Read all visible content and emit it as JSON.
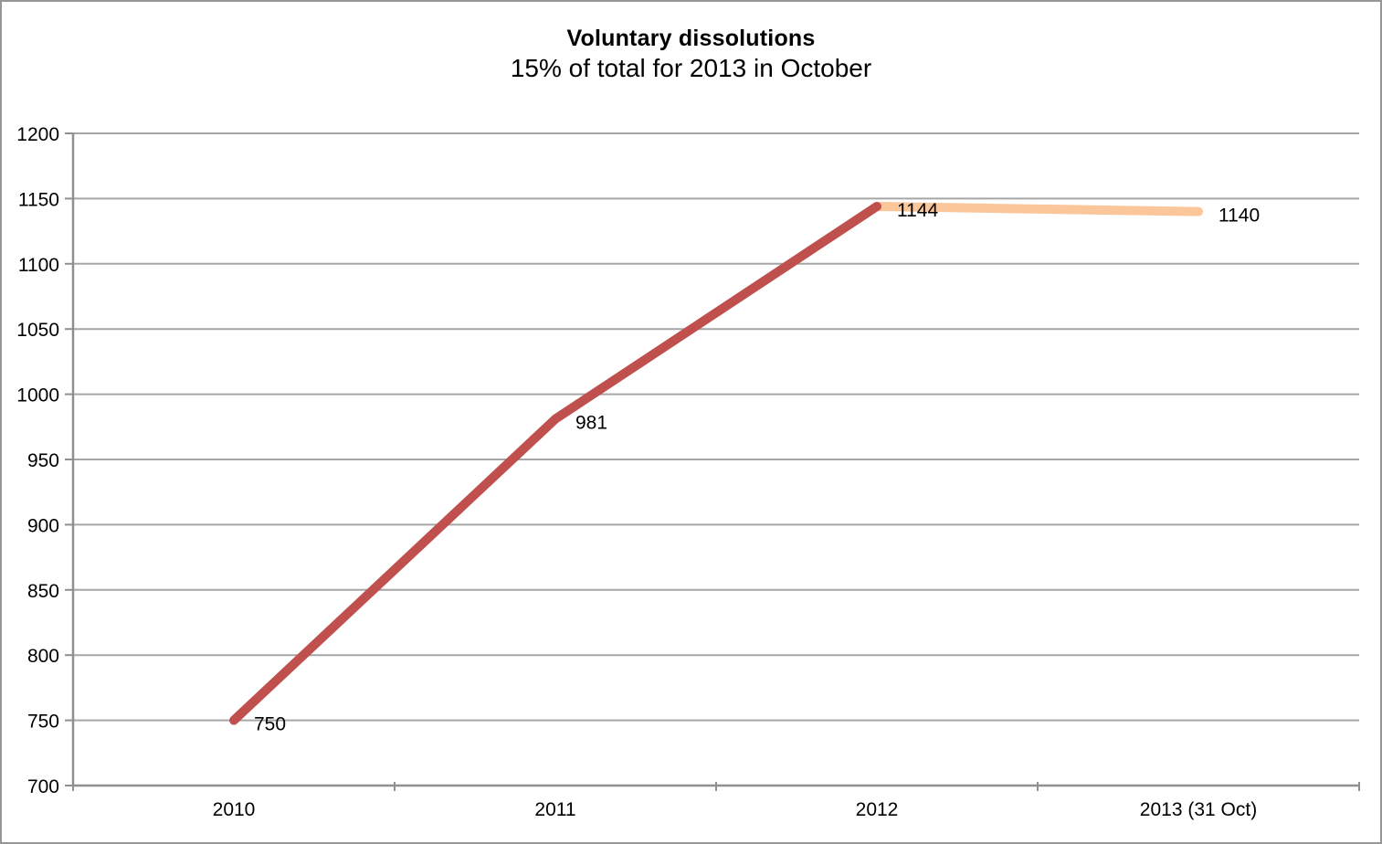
{
  "chart": {
    "title": "Voluntary dissolutions",
    "subtitle": "15% of total for 2013 in October"
  },
  "chart_data": {
    "type": "line",
    "title": "Voluntary dissolutions",
    "subtitle": "15% of total for 2013 in October",
    "categories": [
      "2010",
      "2011",
      "2012",
      "2013 (31 Oct)"
    ],
    "values": [
      750,
      981,
      1144,
      1140
    ],
    "data_labels": [
      "750",
      "981",
      "1144",
      "1140"
    ],
    "series": [
      {
        "name": "dissolutions-2010-2012",
        "color": "#C0504D",
        "x": [
          0,
          1,
          2
        ],
        "values": [
          750,
          981,
          1144
        ]
      },
      {
        "name": "dissolutions-2013-to-31-oct",
        "color": "#FBC699",
        "x": [
          2,
          3
        ],
        "values": [
          1144,
          1140
        ]
      }
    ],
    "xlabel": "",
    "ylabel": "",
    "ylim": [
      700,
      1200
    ],
    "y_tick_step": 50,
    "y_ticks": [
      700,
      750,
      800,
      850,
      900,
      950,
      1000,
      1050,
      1100,
      1150,
      1200
    ],
    "grid": true,
    "legend": false,
    "colors": {
      "segment_2010_2012": "#C0504D",
      "segment_2013": "#FBC699",
      "gridline": "#A6A6A6",
      "axis": "#8F8F8F",
      "border": "#969696",
      "text": "#000000"
    }
  }
}
